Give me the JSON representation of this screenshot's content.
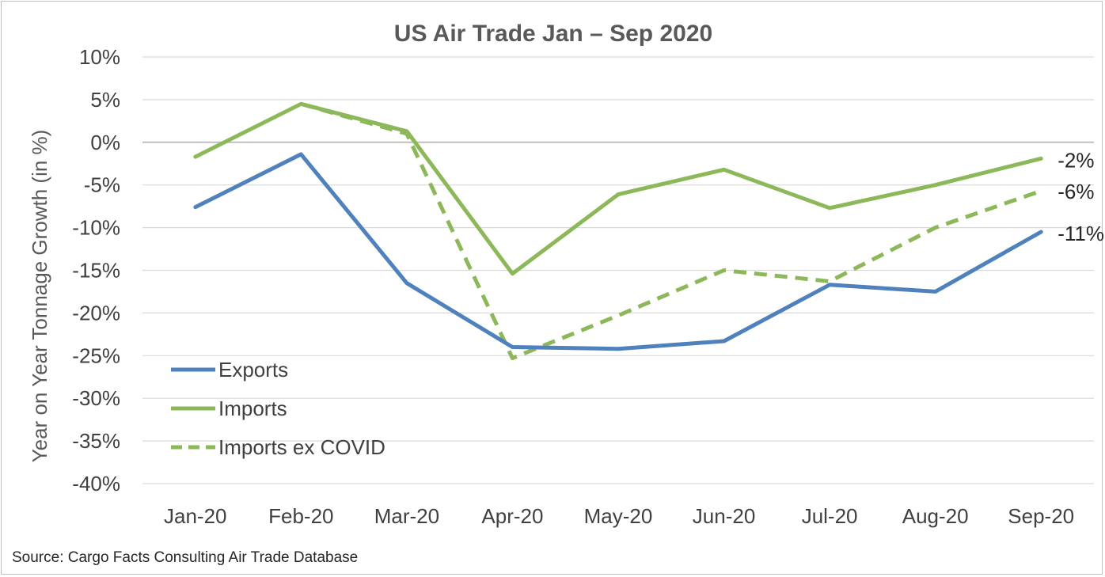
{
  "chart_data": {
    "type": "line",
    "title": "US Air Trade Jan – Sep 2020",
    "xlabel": "",
    "ylabel": "Year on Year Tonnage Growth (in %)",
    "categories": [
      "Jan-20",
      "Feb-20",
      "Mar-20",
      "Apr-20",
      "May-20",
      "Jun-20",
      "Jul-20",
      "Aug-20",
      "Sep-20"
    ],
    "ylim": [
      -40,
      10
    ],
    "ytick_step": 5,
    "ytick_labels": [
      "10%",
      "5%",
      "0%",
      "-5%",
      "-10%",
      "-15%",
      "-20%",
      "-25%",
      "-30%",
      "-35%",
      "-40%"
    ],
    "grid": true,
    "legend_position": "lower-left",
    "series": [
      {
        "name": "Exports",
        "color": "#4f81bd",
        "dashed": false,
        "values": [
          -7.6,
          -1.4,
          -16.5,
          -24.0,
          -24.2,
          -23.3,
          -16.7,
          -17.5,
          -10.5
        ],
        "end_label": "-11%"
      },
      {
        "name": "Imports",
        "color": "#8db85a",
        "dashed": false,
        "values": [
          -1.7,
          4.5,
          1.3,
          -15.4,
          -6.1,
          -3.2,
          -7.7,
          -5.0,
          -1.9
        ],
        "end_label": "-2%"
      },
      {
        "name": "Imports ex COVID",
        "color": "#8db85a",
        "dashed": true,
        "values": [
          null,
          4.5,
          1.0,
          -25.3,
          -20.3,
          -15.0,
          -16.3,
          -10.0,
          -5.7
        ],
        "end_label": "-6%"
      }
    ]
  },
  "source": "Source: Cargo Facts Consulting Air Trade Database"
}
